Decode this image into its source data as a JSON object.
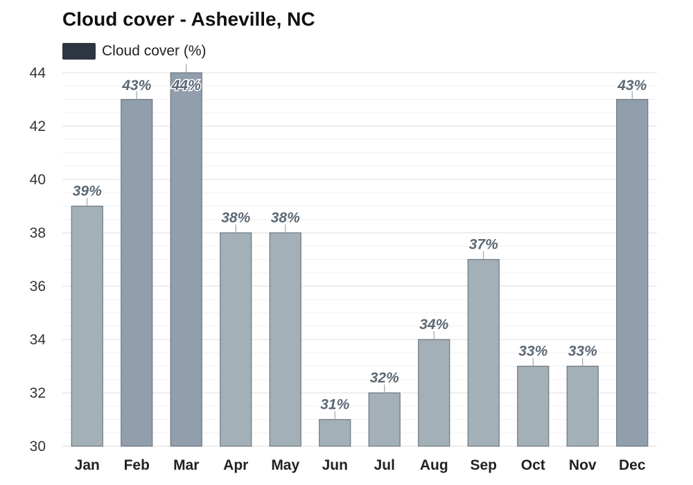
{
  "title": "Cloud cover - Asheville, NC",
  "legend": {
    "label": "Cloud cover (%)",
    "color": "#2b3640"
  },
  "colors": {
    "bar": "#a4b0b8",
    "bar_high": "#909fab",
    "bar_edge": "#6b7680",
    "grid": "#e3e3e3"
  },
  "chart_data": {
    "type": "bar",
    "title": "Cloud cover - Asheville, NC",
    "categories": [
      "Jan",
      "Feb",
      "Mar",
      "Apr",
      "May",
      "Jun",
      "Jul",
      "Aug",
      "Sep",
      "Oct",
      "Nov",
      "Dec"
    ],
    "series": [
      {
        "name": "Cloud cover (%)",
        "values": [
          39,
          43,
          44,
          38,
          38,
          31,
          32,
          34,
          37,
          33,
          33,
          43
        ]
      }
    ],
    "data_labels": [
      "39%",
      "43%",
      "44%",
      "38%",
      "38%",
      "31%",
      "32%",
      "34%",
      "37%",
      "33%",
      "33%",
      "43%"
    ],
    "ylim": [
      30,
      44
    ],
    "yticks": [
      30,
      32,
      34,
      36,
      38,
      40,
      42,
      44
    ],
    "grid": true,
    "legend_position": "top-left"
  }
}
